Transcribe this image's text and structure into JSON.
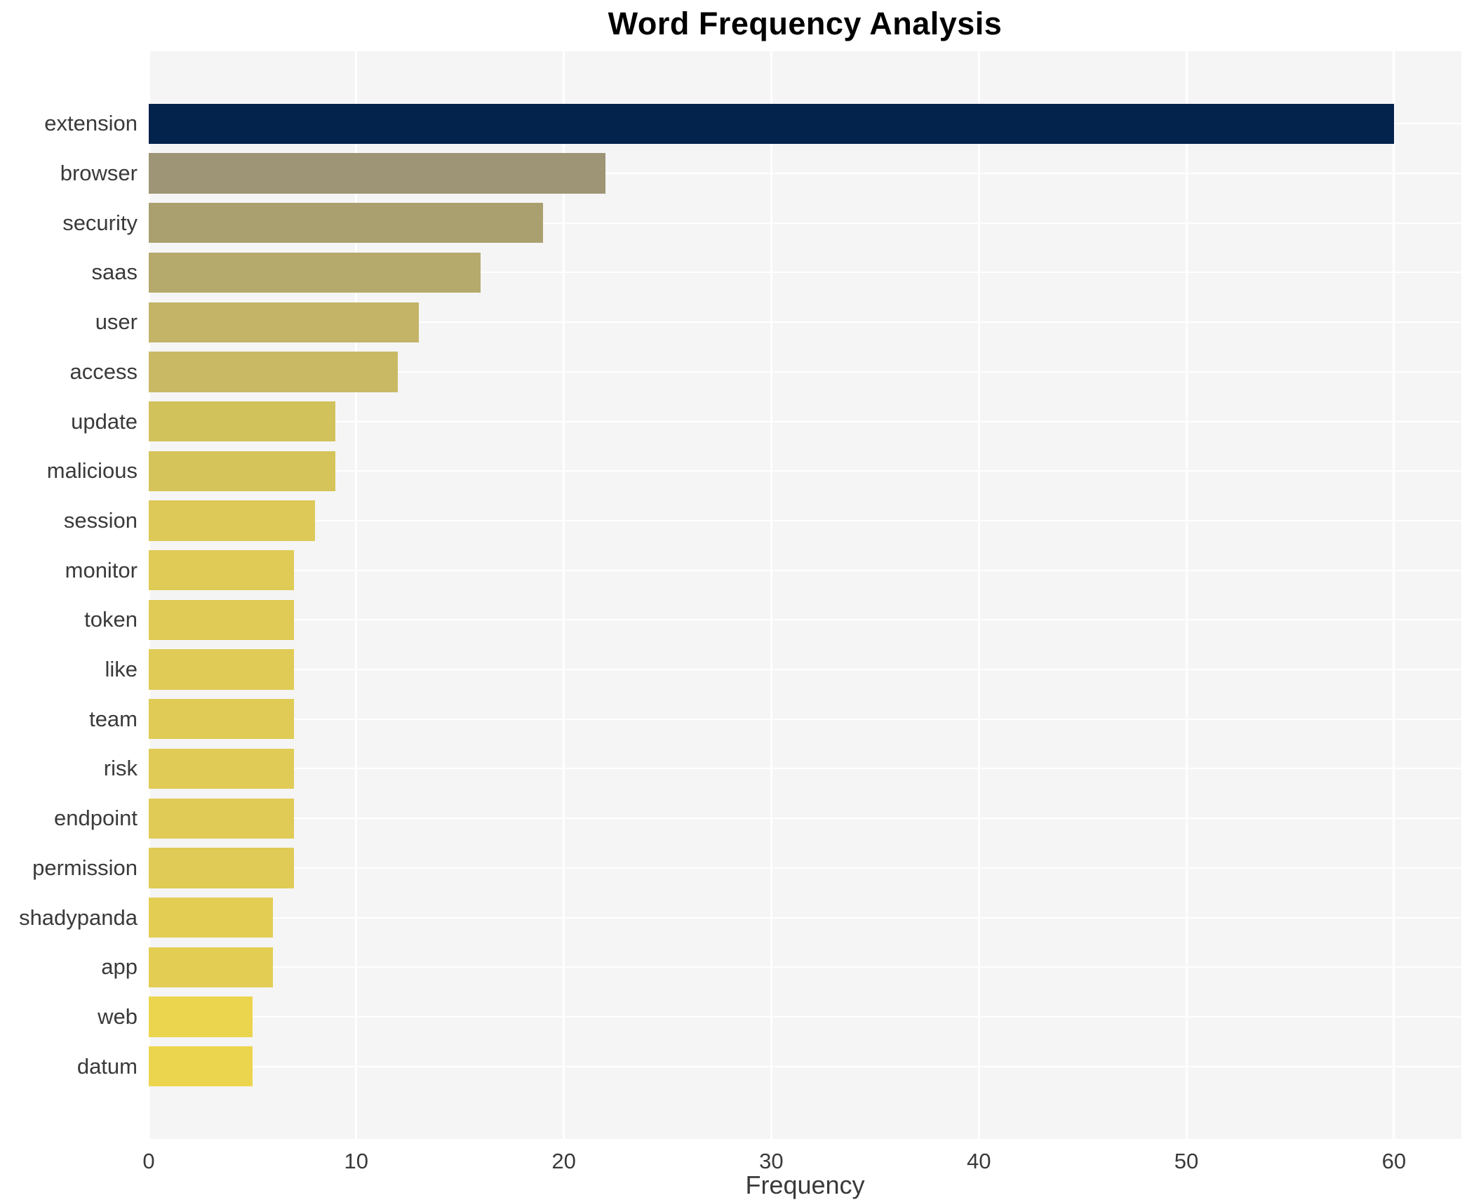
{
  "chart_data": {
    "type": "bar",
    "orientation": "horizontal",
    "title": "Word Frequency Analysis",
    "xlabel": "Frequency",
    "ylabel": "",
    "categories": [
      "extension",
      "browser",
      "security",
      "saas",
      "user",
      "access",
      "update",
      "malicious",
      "session",
      "monitor",
      "token",
      "like",
      "team",
      "risk",
      "endpoint",
      "permission",
      "shadypanda",
      "app",
      "web",
      "datum"
    ],
    "values": [
      60,
      22,
      19,
      16,
      13,
      12,
      9,
      9,
      8,
      7,
      7,
      7,
      7,
      7,
      7,
      7,
      6,
      6,
      5,
      5
    ],
    "bar_colors": [
      "#03224c",
      "#9d9575",
      "#aaa06f",
      "#b5a96c",
      "#c3b468",
      "#c9b965",
      "#d2c25b",
      "#d5c45a",
      "#dcc957",
      "#dfcb55",
      "#dfcb55",
      "#dfcb55",
      "#dfcb55",
      "#dfcb55",
      "#dfcb55",
      "#dfcb55",
      "#e3cd52",
      "#e3cd52",
      "#ecd54e",
      "#ecd54e"
    ],
    "x_ticks": [
      0,
      10,
      20,
      30,
      40,
      50,
      60
    ],
    "xlim": [
      0,
      63.25
    ],
    "grid": true,
    "legend": "none",
    "plot_bg_color": "#f5f5f6",
    "grid_color": "#ffffff",
    "tick_label_color": "#3a3a3a",
    "category_label_color": "#3a3a3a",
    "title_color": "#000000"
  }
}
